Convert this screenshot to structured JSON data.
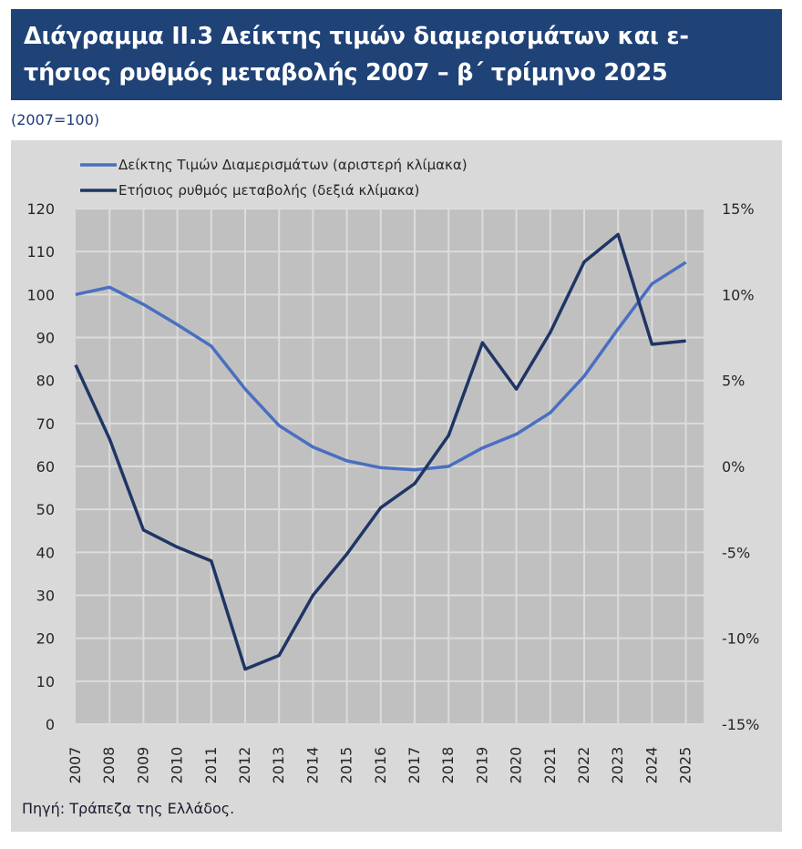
{
  "header": {
    "title_line1": "Διάγραμμα ΙΙ.3 Δείκτης τιμών διαμερισμάτων και ε-",
    "title_line2": "τήσιος ρυθμός μεταβολής 2007 – β΄ τρίμηνο 2025"
  },
  "unit_note": "(2007=100)",
  "source": "Πηγή: Τράπεζα της Ελλάδος.",
  "colors": {
    "title_bg": "#1f4277",
    "panel_bg": "#d9d9d9",
    "plot_bg": "#c0c0c0",
    "grid": "#dcdcdc",
    "index_line": "#4a6fc1",
    "rate_line": "#1f3564"
  },
  "chart_data": {
    "type": "line",
    "title": "Διάγραμμα ΙΙ.3 Δείκτης τιμών διαμερισμάτων και ετήσιος ρυθμός μεταβολής 2007 – β΄ τρίμηνο 2025",
    "subtitle": "(2007=100)",
    "xlabel": "",
    "ylabel": "",
    "x": [
      "2007",
      "2008",
      "2009",
      "2010",
      "2011",
      "2012",
      "2013",
      "2014",
      "2015",
      "2016",
      "2017",
      "2018",
      "2019",
      "2020",
      "2021",
      "2022",
      "2023",
      "2024",
      "2025"
    ],
    "series": [
      {
        "name": "Δείκτης Τιμών Διαμερισμάτων (αριστερή κλίμακα)",
        "axis": "left",
        "color": "#4a6fc1",
        "values": [
          100,
          101.7,
          97.7,
          93,
          88,
          78,
          69.5,
          64.5,
          61.3,
          59.7,
          59.2,
          60,
          64.3,
          67.5,
          72.5,
          81,
          92,
          102.5,
          107.5
        ]
      },
      {
        "name": "Ετήσιος ρυθμός μεταβολής (δεξιά κλίμακα)",
        "axis": "right",
        "color": "#1f3564",
        "values": [
          5.9,
          1.6,
          -3.7,
          -4.7,
          -5.5,
          -11.8,
          -11.0,
          -7.5,
          -5.1,
          -2.4,
          -1.0,
          1.8,
          7.2,
          4.5,
          7.8,
          11.9,
          13.5,
          7.1,
          7.3
        ]
      }
    ],
    "left_axis": {
      "ylim": [
        0,
        120
      ],
      "ticks": [
        "0",
        "10",
        "20",
        "30",
        "40",
        "50",
        "60",
        "70",
        "80",
        "90",
        "100",
        "110",
        "120"
      ]
    },
    "right_axis": {
      "ylim": [
        -15,
        15
      ],
      "ticks": [
        "-15%",
        "-10%",
        "-5%",
        "0%",
        "5%",
        "10%",
        "15%"
      ]
    },
    "grid": true,
    "legend_position": "top-left"
  }
}
